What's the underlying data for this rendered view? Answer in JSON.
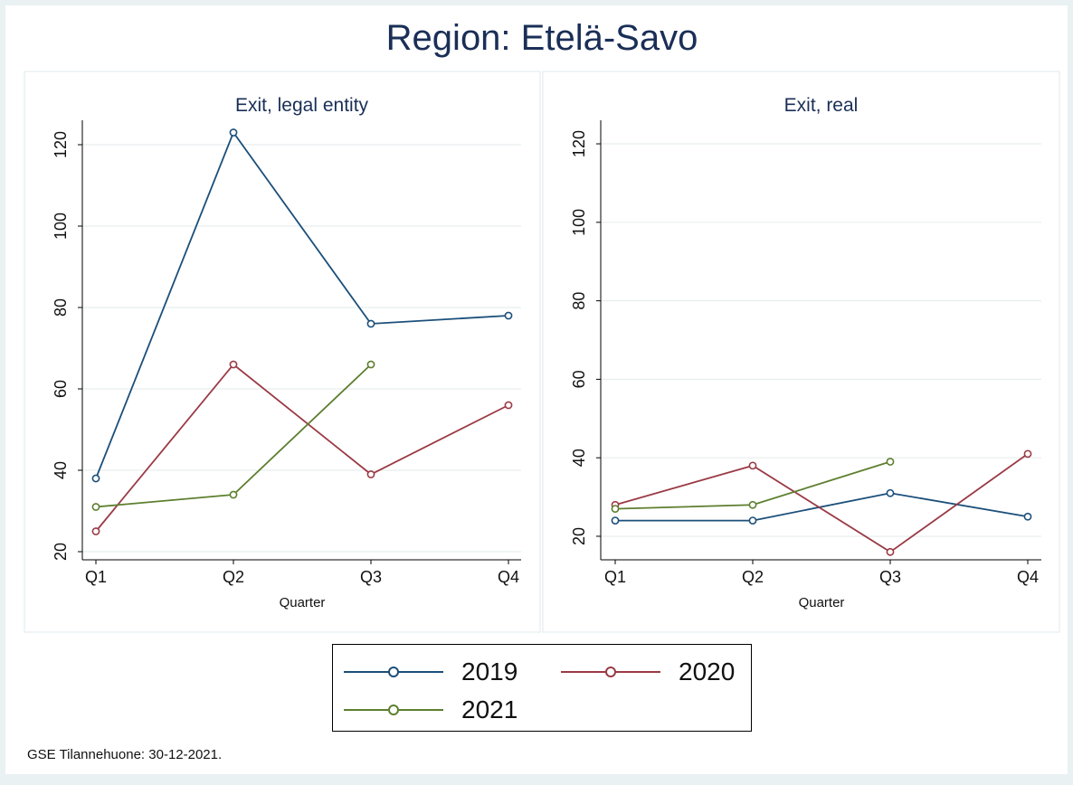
{
  "title": "Region: Etelä-Savo",
  "footnote": "GSE Tilannehuone: 30-12-2021.",
  "colors": {
    "2019": "#1b4f7a",
    "2020": "#9a3a45",
    "2021": "#5d7f2f"
  },
  "legend": [
    {
      "label": "2019",
      "color": "#1b4f7a"
    },
    {
      "label": "2020",
      "color": "#9a3a45"
    },
    {
      "label": "2021",
      "color": "#5d7f2f"
    }
  ],
  "chart_data": [
    {
      "type": "line",
      "title": "Exit, legal entity",
      "xlabel": "Quarter",
      "ylabel": "",
      "categories": [
        "Q1",
        "Q2",
        "Q3",
        "Q4"
      ],
      "yticks": [
        20,
        40,
        60,
        80,
        100,
        120
      ],
      "ylim": [
        18,
        126
      ],
      "grid": true,
      "series": [
        {
          "name": "2019",
          "values": [
            38,
            123,
            76,
            78
          ]
        },
        {
          "name": "2020",
          "values": [
            25,
            66,
            39,
            56
          ]
        },
        {
          "name": "2021",
          "values": [
            31,
            34,
            66,
            null
          ]
        }
      ]
    },
    {
      "type": "line",
      "title": "Exit, real",
      "xlabel": "Quarter",
      "ylabel": "",
      "categories": [
        "Q1",
        "Q2",
        "Q3",
        "Q4"
      ],
      "yticks": [
        20,
        40,
        60,
        80,
        100,
        120
      ],
      "ylim": [
        14,
        126
      ],
      "grid": true,
      "series": [
        {
          "name": "2019",
          "values": [
            24,
            24,
            31,
            25
          ]
        },
        {
          "name": "2020",
          "values": [
            28,
            38,
            16,
            41
          ]
        },
        {
          "name": "2021",
          "values": [
            27,
            28,
            39,
            null
          ]
        }
      ]
    }
  ]
}
